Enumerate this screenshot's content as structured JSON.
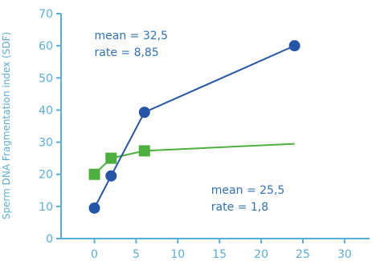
{
  "chart_data": {
    "type": "line",
    "title": "",
    "xlabel": "",
    "ylabel": "Sperm DNA Fragmentation index (SDF)",
    "xlim": [
      -4,
      33
    ],
    "ylim": [
      0,
      70
    ],
    "x_ticks": [
      0,
      5,
      10,
      15,
      20,
      25,
      30
    ],
    "y_ticks": [
      0,
      10,
      20,
      30,
      40,
      50,
      60,
      70
    ],
    "grid": false,
    "colors": {
      "axis": "#5aaed6",
      "blue": "#2356a6",
      "green": "#4caf3e",
      "annot": "#2e72b8"
    },
    "series": [
      {
        "marker": "circle",
        "color": "#2356a6",
        "x": [
          0,
          2,
          6,
          24
        ],
        "y": [
          9.5,
          19.5,
          39.3,
          60
        ]
      },
      {
        "marker": "square",
        "color": "#4caf3e",
        "x": [
          0,
          2,
          6
        ],
        "y": [
          20,
          25,
          27.3
        ],
        "extension": {
          "x": [
            6,
            24
          ],
          "y": [
            27.3,
            29.5
          ]
        }
      }
    ],
    "annotations": [
      {
        "lines": [
          "mean = 32,5",
          "rate = 8,85"
        ],
        "x": 0,
        "y": 62
      },
      {
        "lines": [
          "mean = 25,5",
          "rate = 1,8"
        ],
        "x": 14,
        "y": 14
      }
    ]
  }
}
